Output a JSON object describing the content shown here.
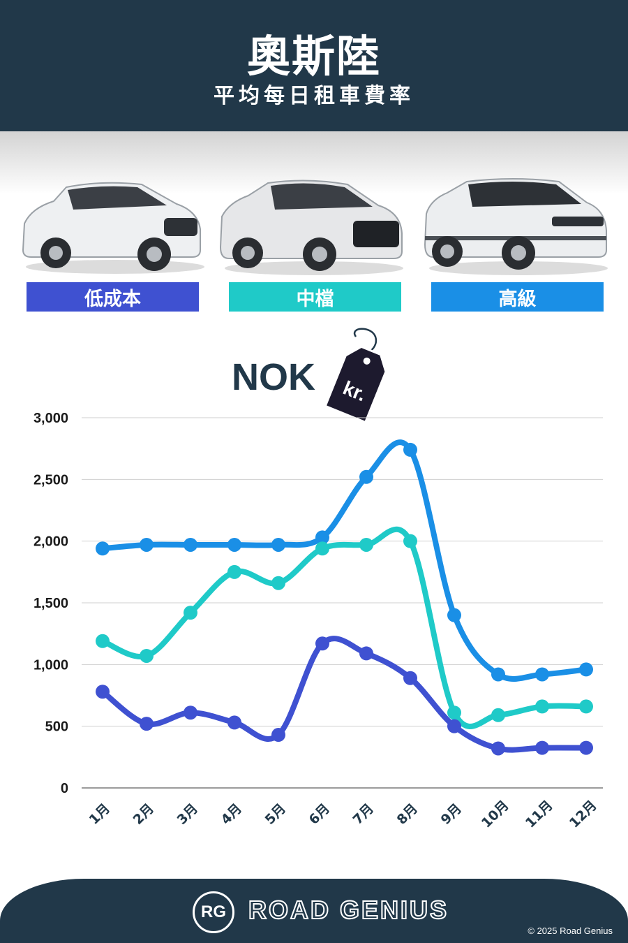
{
  "header": {
    "title": "奧斯陸",
    "subtitle": "平均每日租車費率"
  },
  "categories": [
    {
      "label": "低成本",
      "color": "#3f51d1"
    },
    {
      "label": "中檔",
      "color": "#1fcac8"
    },
    {
      "label": "高級",
      "color": "#1a8fe6"
    }
  ],
  "currency": {
    "code": "NOK",
    "tag_text": "kr."
  },
  "chart_data": {
    "type": "line",
    "x": [
      "1月",
      "2月",
      "3月",
      "4月",
      "5月",
      "6月",
      "7月",
      "8月",
      "9月",
      "10月",
      "11月",
      "12月"
    ],
    "ylim": [
      0,
      3000
    ],
    "yticks": [
      "0",
      "500",
      "1,000",
      "1,500",
      "2,000",
      "2,500",
      "3,000"
    ],
    "grid": true,
    "series": [
      {
        "name": "低成本",
        "color": "#3f51d1",
        "values": [
          780,
          520,
          610,
          530,
          430,
          1170,
          1090,
          890,
          500,
          320,
          325,
          325
        ]
      },
      {
        "name": "中檔",
        "color": "#1fcac8",
        "values": [
          1190,
          1070,
          1420,
          1750,
          1660,
          1940,
          1970,
          2000,
          610,
          590,
          660,
          660
        ]
      },
      {
        "name": "高級",
        "color": "#1a8fe6",
        "values": [
          1940,
          1970,
          1970,
          1970,
          1970,
          2030,
          2520,
          2740,
          1400,
          920,
          920,
          960
        ]
      }
    ]
  },
  "footer": {
    "brand": "ROAD GENIUS",
    "logo_text": "RG",
    "copyright": "© 2025 Road Genius"
  }
}
